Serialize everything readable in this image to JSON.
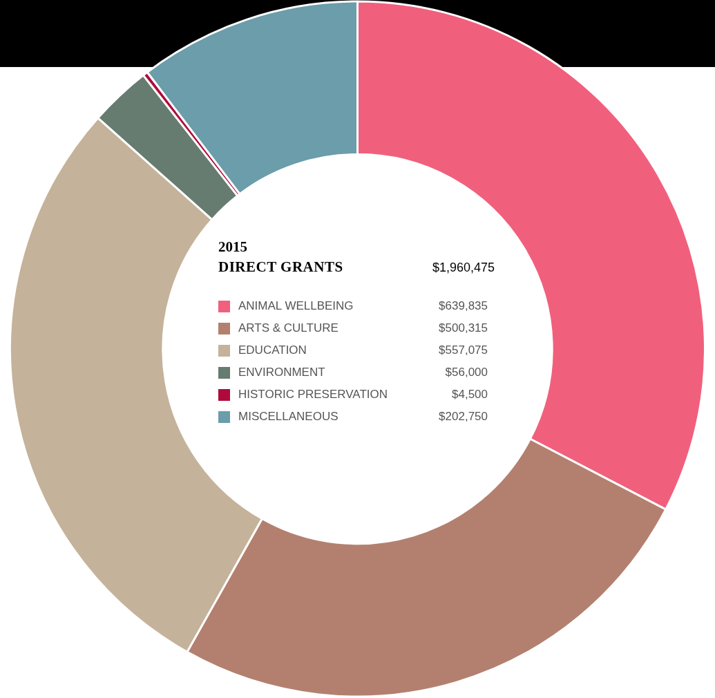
{
  "chart_data": {
    "type": "donut",
    "title": "2015",
    "subtitle": "DIRECT GRANTS",
    "annotations": [
      "$1,960,475"
    ],
    "categories": [
      "ANIMAL WELLBEING",
      "ARTS & CULTURE",
      "EDUCATION",
      "ENVIRONMENT",
      "HISTORIC PRESERVATION",
      "MISCELLANEOUS"
    ],
    "values": [
      639835,
      500315,
      557075,
      56000,
      4500,
      202750
    ],
    "value_labels": [
      "$639,835",
      "$500,315",
      "$557,075",
      "$56,000",
      "$4,500",
      "$202,750"
    ],
    "colors": [
      "#f0607d",
      "#b3806f",
      "#c4b29a",
      "#667c70",
      "#b00a3c",
      "#6b9dab"
    ],
    "legend": "center"
  }
}
